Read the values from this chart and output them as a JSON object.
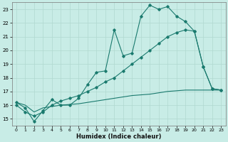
{
  "xlabel": "Humidex (Indice chaleur)",
  "bg_color": "#c8ece6",
  "grid_color": "#b0d8d0",
  "line_color": "#1a7a6e",
  "xlim": [
    -0.5,
    23.5
  ],
  "ylim": [
    14.5,
    23.5
  ],
  "xticks": [
    0,
    1,
    2,
    3,
    4,
    5,
    6,
    7,
    8,
    9,
    10,
    11,
    12,
    13,
    14,
    15,
    16,
    17,
    18,
    19,
    20,
    21,
    22,
    23
  ],
  "yticks": [
    15,
    16,
    17,
    18,
    19,
    20,
    21,
    22,
    23
  ],
  "line1_x": [
    0,
    1,
    2,
    3,
    4,
    5,
    6,
    7,
    8,
    9,
    10,
    11,
    12,
    13,
    14,
    15,
    16,
    17,
    18,
    19,
    20,
    21,
    22,
    23
  ],
  "line1_y": [
    16.2,
    15.8,
    14.8,
    15.6,
    16.4,
    16.0,
    16.0,
    16.5,
    17.5,
    18.4,
    18.5,
    21.5,
    19.6,
    19.8,
    22.5,
    23.3,
    23.0,
    23.2,
    22.5,
    22.1,
    21.4,
    18.8,
    17.2,
    17.1
  ],
  "line2_x": [
    0,
    1,
    2,
    3,
    4,
    5,
    6,
    7,
    8,
    9,
    10,
    11,
    12,
    13,
    14,
    15,
    16,
    17,
    18,
    19,
    20,
    21,
    22,
    23
  ],
  "line2_y": [
    16.0,
    15.5,
    15.2,
    15.5,
    16.0,
    16.3,
    16.5,
    16.7,
    17.0,
    17.3,
    17.7,
    18.0,
    18.5,
    19.0,
    19.5,
    20.0,
    20.5,
    21.0,
    21.3,
    21.5,
    21.4,
    18.8,
    17.2,
    17.1
  ],
  "line3_x": [
    0,
    1,
    2,
    3,
    4,
    5,
    6,
    7,
    8,
    9,
    10,
    11,
    12,
    13,
    14,
    15,
    16,
    17,
    18,
    19,
    20,
    21,
    22,
    23
  ],
  "line3_y": [
    16.2,
    16.0,
    15.5,
    15.8,
    15.9,
    16.0,
    16.05,
    16.1,
    16.2,
    16.3,
    16.4,
    16.5,
    16.6,
    16.7,
    16.75,
    16.8,
    16.9,
    17.0,
    17.05,
    17.1,
    17.1,
    17.1,
    17.1,
    17.1
  ]
}
